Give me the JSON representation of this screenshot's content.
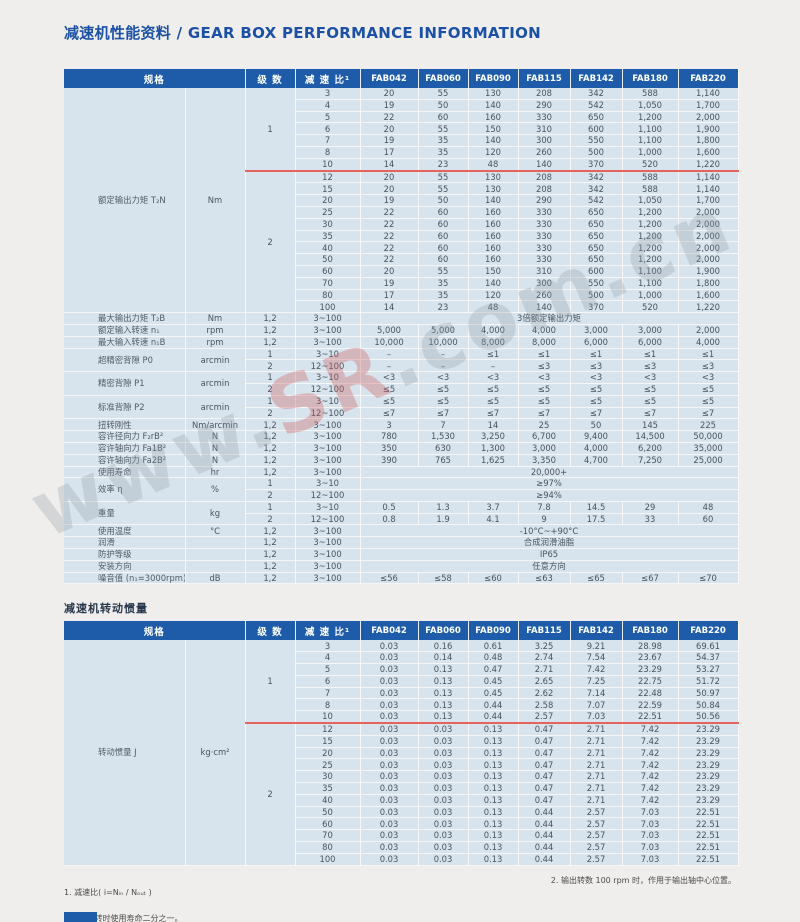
{
  "page": {
    "title": "减速机性能资料 / GEAR BOX PERFORMANCE INFORMATION"
  },
  "watermark": {
    "prefix": "www.",
    "brand": "SR",
    "suffix": ".com.cn"
  },
  "table1": {
    "headers": [
      "规格",
      "级 数",
      "减 速 比¹",
      "FAB042",
      "FAB060",
      "FAB090",
      "FAB115",
      "FAB142",
      "FAB180",
      "FAB220"
    ],
    "rows": [
      [
        {
          "t": "额定输出力矩 T₂N",
          "rs": 19,
          "c": "lbl"
        },
        {
          "t": "Nm",
          "rs": 19,
          "c": "unit"
        },
        {
          "t": "1",
          "rs": 7,
          "c": "red"
        },
        "3",
        "20",
        "55",
        "130",
        "208",
        "342",
        "588",
        "1,140"
      ],
      [
        "4",
        "19",
        "50",
        "140",
        "290",
        "542",
        "1,050",
        "1,700"
      ],
      [
        "5",
        "22",
        "60",
        "160",
        "330",
        "650",
        "1,200",
        "2,000"
      ],
      [
        "6",
        "20",
        "55",
        "150",
        "310",
        "600",
        "1,100",
        "1,900"
      ],
      [
        "7",
        "19",
        "35",
        "140",
        "300",
        "550",
        "1,100",
        "1,800"
      ],
      [
        "8",
        "17",
        "35",
        "120",
        "260",
        "500",
        "1,000",
        "1,600"
      ],
      [
        {
          "t": "10",
          "c": "red"
        },
        {
          "t": "14",
          "c": "red"
        },
        {
          "t": "23",
          "c": "red"
        },
        {
          "t": "48",
          "c": "red"
        },
        {
          "t": "140",
          "c": "red"
        },
        {
          "t": "370",
          "c": "red"
        },
        {
          "t": "520",
          "c": "red"
        },
        {
          "t": "1,220",
          "c": "red"
        }
      ],
      [
        {
          "t": "2",
          "rs": 12
        },
        "12",
        "20",
        "55",
        "130",
        "208",
        "342",
        "588",
        "1,140"
      ],
      [
        "15",
        "20",
        "55",
        "130",
        "208",
        "342",
        "588",
        "1,140"
      ],
      [
        "20",
        "19",
        "50",
        "140",
        "290",
        "542",
        "1,050",
        "1,700"
      ],
      [
        "25",
        "22",
        "60",
        "160",
        "330",
        "650",
        "1,200",
        "2,000"
      ],
      [
        "30",
        "22",
        "60",
        "160",
        "330",
        "650",
        "1,200",
        "2,000"
      ],
      [
        "35",
        "22",
        "60",
        "160",
        "330",
        "650",
        "1,200",
        "2,000"
      ],
      [
        "40",
        "22",
        "60",
        "160",
        "330",
        "650",
        "1,200",
        "2,000"
      ],
      [
        "50",
        "22",
        "60",
        "160",
        "330",
        "650",
        "1,200",
        "2,000"
      ],
      [
        "60",
        "20",
        "55",
        "150",
        "310",
        "600",
        "1,100",
        "1,900"
      ],
      [
        "70",
        "19",
        "35",
        "140",
        "300",
        "550",
        "1,100",
        "1,800"
      ],
      [
        "80",
        "17",
        "35",
        "120",
        "260",
        "500",
        "1,000",
        "1,600"
      ],
      [
        "100",
        "14",
        "23",
        "48",
        "140",
        "370",
        "520",
        "1,220"
      ],
      [
        {
          "t": "最大输出力矩 T₂B",
          "c": "lbl"
        },
        {
          "t": "Nm",
          "c": "unit"
        },
        "1,2",
        "3~100",
        {
          "t": "3倍额定输出力矩",
          "cs": 7
        }
      ],
      [
        {
          "t": "额定输入转速 n₁",
          "c": "lbl"
        },
        {
          "t": "rpm",
          "c": "unit"
        },
        "1,2",
        "3~100",
        "5,000",
        "5,000",
        "4,000",
        "4,000",
        "3,000",
        "3,000",
        "2,000"
      ],
      [
        {
          "t": "最大输入转速 n₁B",
          "c": "lbl"
        },
        {
          "t": "rpm",
          "c": "unit"
        },
        "1,2",
        "3~100",
        "10,000",
        "10,000",
        "8,000",
        "8,000",
        "6,000",
        "6,000",
        "4,000"
      ],
      [
        {
          "t": "超精密背隙 P0",
          "rs": 2,
          "c": "lbl"
        },
        {
          "t": "arcmin",
          "rs": 2,
          "c": "unit"
        },
        "1",
        "3~10",
        "–",
        "–",
        "≤1",
        "≤1",
        "≤1",
        "≤1",
        "≤1"
      ],
      [
        "2",
        "12~100",
        "–",
        "–",
        "–",
        "≤3",
        "≤3",
        "≤3",
        "≤3"
      ],
      [
        {
          "t": "精密背隙 P1",
          "rs": 2,
          "c": "lbl"
        },
        {
          "t": "arcmin",
          "rs": 2,
          "c": "unit"
        },
        "1",
        "3~10",
        "<3",
        "<3",
        "<3",
        "<3",
        "<3",
        "<3",
        "<3"
      ],
      [
        "2",
        "12~100",
        "≤5",
        "≤5",
        "≤5",
        "≤5",
        "≤5",
        "≤5",
        "≤5"
      ],
      [
        {
          "t": "标准背隙 P2",
          "rs": 2,
          "c": "lbl"
        },
        {
          "t": "arcmin",
          "rs": 2,
          "c": "unit"
        },
        "1",
        "3~10",
        "≤5",
        "≤5",
        "≤5",
        "≤5",
        "≤5",
        "≤5",
        "≤5"
      ],
      [
        "2",
        "12~100",
        "≤7",
        "≤7",
        "≤7",
        "≤7",
        "≤7",
        "≤7",
        "≤7"
      ],
      [
        {
          "t": "扭转刚性",
          "c": "lbl"
        },
        {
          "t": "Nm/arcmin",
          "c": "unit"
        },
        "1,2",
        "3~100",
        "3",
        "7",
        "14",
        "25",
        "50",
        "145",
        "225"
      ],
      [
        {
          "t": "容许径向力 F₂rB²",
          "c": "lbl"
        },
        {
          "t": "N",
          "c": "unit"
        },
        "1,2",
        "3~100",
        "780",
        "1,530",
        "3,250",
        "6,700",
        "9,400",
        "14,500",
        "50,000"
      ],
      [
        {
          "t": "容许轴向力 Fa1B²",
          "c": "lbl"
        },
        {
          "t": "N",
          "c": "unit"
        },
        "1,2",
        "3~100",
        "350",
        "630",
        "1,300",
        "3,000",
        "4,000",
        "6,200",
        "35,000"
      ],
      [
        {
          "t": "容许轴向力 Fa2B²",
          "c": "lbl"
        },
        {
          "t": "N",
          "c": "unit"
        },
        "1,2",
        "3~100",
        "390",
        "765",
        "1,625",
        "3,350",
        "4,700",
        "7,250",
        "25,000"
      ],
      [
        {
          "t": "使用寿命",
          "c": "lbl"
        },
        {
          "t": "hr",
          "c": "unit"
        },
        "1,2",
        "3~100",
        {
          "t": "20,000+",
          "cs": 7
        }
      ],
      [
        {
          "t": "效率 η",
          "rs": 2,
          "c": "lbl"
        },
        {
          "t": "%",
          "rs": 2,
          "c": "unit"
        },
        "1",
        "3~10",
        {
          "t": "≥97%",
          "cs": 7
        }
      ],
      [
        "2",
        "12~100",
        {
          "t": "≥94%",
          "cs": 7
        }
      ],
      [
        {
          "t": "重量",
          "rs": 2,
          "c": "lbl"
        },
        {
          "t": "kg",
          "rs": 2,
          "c": "unit"
        },
        "1",
        "3~10",
        "0.5",
        "1.3",
        "3.7",
        "7.8",
        "14.5",
        "29",
        "48"
      ],
      [
        "2",
        "12~100",
        "0.8",
        "1.9",
        "4.1",
        "9",
        "17.5",
        "33",
        "60"
      ],
      [
        {
          "t": "使用温度",
          "c": "lbl"
        },
        {
          "t": "°C",
          "c": "unit"
        },
        "1,2",
        "3~100",
        {
          "t": "-10°C~+90°C",
          "cs": 7
        }
      ],
      [
        {
          "t": "润滑",
          "c": "lbl"
        },
        {
          "t": "",
          "c": "unit"
        },
        "1,2",
        "3~100",
        {
          "t": "合成润滑油脂",
          "cs": 7
        }
      ],
      [
        {
          "t": "防护等级",
          "c": "lbl"
        },
        {
          "t": "",
          "c": "unit"
        },
        "1,2",
        "3~100",
        {
          "t": "IP65",
          "cs": 7
        }
      ],
      [
        {
          "t": "安装方向",
          "c": "lbl"
        },
        {
          "t": "",
          "c": "unit"
        },
        "1,2",
        "3~100",
        {
          "t": "任意方向",
          "cs": 7
        }
      ],
      [
        {
          "t": "噪音值 (n₁=3000rpm)",
          "c": "lbl"
        },
        {
          "t": "dB",
          "c": "unit"
        },
        "1,2",
        "3~100",
        "≤56",
        "≤58",
        "≤60",
        "≤63",
        "≤65",
        "≤67",
        "≤70"
      ]
    ]
  },
  "table2": {
    "title": "减速机转动惯量",
    "headers": [
      "规格",
      "级 数",
      "减 速 比¹",
      "FAB042",
      "FAB060",
      "FAB090",
      "FAB115",
      "FAB142",
      "FAB180",
      "FAB220"
    ],
    "rows": [
      [
        {
          "t": "转动惯量 J",
          "rs": 19,
          "c": "lbl"
        },
        {
          "t": "kg·cm²",
          "rs": 19,
          "c": "unit"
        },
        {
          "t": "1",
          "rs": 7,
          "c": "red"
        },
        "3",
        "0.03",
        "0.16",
        "0.61",
        "3.25",
        "9.21",
        "28.98",
        "69.61"
      ],
      [
        "4",
        "0.03",
        "0.14",
        "0.48",
        "2.74",
        "7.54",
        "23.67",
        "54.37"
      ],
      [
        "5",
        "0.03",
        "0.13",
        "0.47",
        "2.71",
        "7.42",
        "23.29",
        "53.27"
      ],
      [
        "6",
        "0.03",
        "0.13",
        "0.45",
        "2.65",
        "7.25",
        "22.75",
        "51.72"
      ],
      [
        "7",
        "0.03",
        "0.13",
        "0.45",
        "2.62",
        "7.14",
        "22.48",
        "50.97"
      ],
      [
        "8",
        "0.03",
        "0.13",
        "0.44",
        "2.58",
        "7.07",
        "22.59",
        "50.84"
      ],
      [
        {
          "t": "10",
          "c": "red"
        },
        {
          "t": "0.03",
          "c": "red"
        },
        {
          "t": "0.13",
          "c": "red"
        },
        {
          "t": "0.44",
          "c": "red"
        },
        {
          "t": "2.57",
          "c": "red"
        },
        {
          "t": "7.03",
          "c": "red"
        },
        {
          "t": "22.51",
          "c": "red"
        },
        {
          "t": "50.56",
          "c": "red"
        }
      ],
      [
        {
          "t": "2",
          "rs": 12
        },
        "12",
        "0.03",
        "0.03",
        "0.13",
        "0.47",
        "2.71",
        "7.42",
        "23.29"
      ],
      [
        "15",
        "0.03",
        "0.03",
        "0.13",
        "0.47",
        "2.71",
        "7.42",
        "23.29"
      ],
      [
        "20",
        "0.03",
        "0.03",
        "0.13",
        "0.47",
        "2.71",
        "7.42",
        "23.29"
      ],
      [
        "25",
        "0.03",
        "0.03",
        "0.13",
        "0.47",
        "2.71",
        "7.42",
        "23.29"
      ],
      [
        "30",
        "0.03",
        "0.03",
        "0.13",
        "0.47",
        "2.71",
        "7.42",
        "23.29"
      ],
      [
        "35",
        "0.03",
        "0.03",
        "0.13",
        "0.47",
        "2.71",
        "7.42",
        "23.29"
      ],
      [
        "40",
        "0.03",
        "0.03",
        "0.13",
        "0.47",
        "2.71",
        "7.42",
        "23.29"
      ],
      [
        "50",
        "0.03",
        "0.03",
        "0.13",
        "0.44",
        "2.57",
        "7.03",
        "22.51"
      ],
      [
        "60",
        "0.03",
        "0.03",
        "0.13",
        "0.44",
        "2.57",
        "7.03",
        "22.51"
      ],
      [
        "70",
        "0.03",
        "0.03",
        "0.13",
        "0.44",
        "2.57",
        "7.03",
        "22.51"
      ],
      [
        "80",
        "0.03",
        "0.03",
        "0.13",
        "0.44",
        "2.57",
        "7.03",
        "22.51"
      ],
      [
        "100",
        "0.03",
        "0.03",
        "0.13",
        "0.44",
        "2.57",
        "7.03",
        "22.51"
      ]
    ]
  },
  "footnotes": {
    "left1": "1. 减速比( i=Nᵢₙ / Nₒᵤₜ )",
    "left2": "* 连续运转时使用寿命二分之一。",
    "right": "2. 输出转数 100 rpm 时，作用于输出轴中心位置。"
  }
}
